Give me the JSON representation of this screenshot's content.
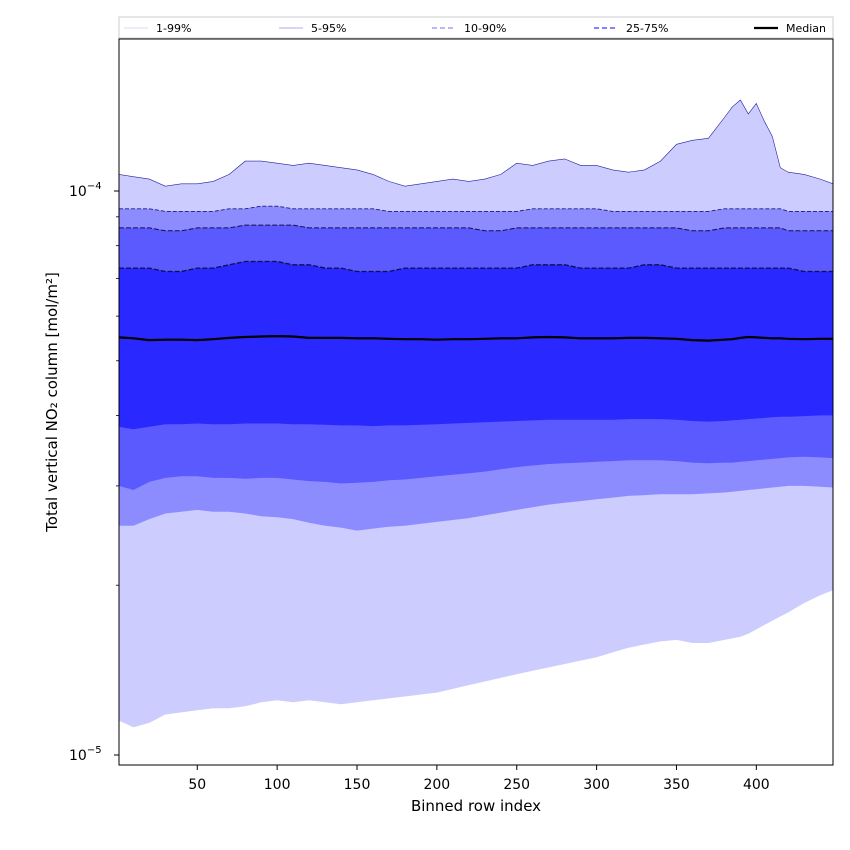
{
  "chart_data": {
    "type": "area",
    "xlabel": "Binned row index",
    "ylabel": "Total vertical NO₂ column [mol/m²]",
    "yscale": "log",
    "xlim": [
      1,
      448
    ],
    "ylim": [
      9.6e-06,
      0.000186
    ],
    "x_ticks": [
      50,
      100,
      150,
      200,
      250,
      300,
      350,
      400
    ],
    "y_ticks": [
      {
        "value": 1e-05,
        "base": "10",
        "exponent": "−5"
      },
      {
        "value": 0.0001,
        "base": "10",
        "exponent": "−4"
      }
    ],
    "grid": false,
    "legend_position": "top",
    "x": [
      1,
      10,
      20,
      30,
      40,
      50,
      60,
      70,
      80,
      90,
      100,
      110,
      120,
      130,
      140,
      150,
      160,
      170,
      180,
      190,
      200,
      210,
      220,
      230,
      240,
      250,
      260,
      270,
      280,
      290,
      300,
      310,
      320,
      330,
      340,
      350,
      360,
      370,
      380,
      385,
      390,
      395,
      400,
      405,
      410,
      415,
      420,
      430,
      440,
      448
    ],
    "series": [
      {
        "name": "1-99%",
        "color": "#ccccff",
        "upper": [
          0.000107,
          0.000106,
          0.000105,
          0.000102,
          0.000103,
          0.000103,
          0.000104,
          0.000107,
          0.000113,
          0.000113,
          0.000112,
          0.000111,
          0.000112,
          0.000111,
          0.00011,
          0.000109,
          0.000107,
          0.000104,
          0.000102,
          0.000103,
          0.000104,
          0.000105,
          0.000104,
          0.000105,
          0.000107,
          0.000112,
          0.000111,
          0.000113,
          0.000114,
          0.000111,
          0.000111,
          0.000109,
          0.000108,
          0.000109,
          0.000113,
          0.000121,
          0.000123,
          0.000124,
          0.000135,
          0.000141,
          0.000145,
          0.000137,
          0.000143,
          0.000133,
          0.000125,
          0.00011,
          0.000108,
          0.000107,
          0.000105,
          0.000103
        ],
        "lower": [
          1.15e-05,
          1.12e-05,
          1.14e-05,
          1.18e-05,
          1.19e-05,
          1.2e-05,
          1.21e-05,
          1.21e-05,
          1.22e-05,
          1.24e-05,
          1.25e-05,
          1.24e-05,
          1.25e-05,
          1.24e-05,
          1.23e-05,
          1.24e-05,
          1.25e-05,
          1.26e-05,
          1.27e-05,
          1.28e-05,
          1.29e-05,
          1.31e-05,
          1.33e-05,
          1.35e-05,
          1.37e-05,
          1.39e-05,
          1.41e-05,
          1.43e-05,
          1.45e-05,
          1.47e-05,
          1.49e-05,
          1.52e-05,
          1.55e-05,
          1.57e-05,
          1.59e-05,
          1.6e-05,
          1.58e-05,
          1.58e-05,
          1.6e-05,
          1.61e-05,
          1.62e-05,
          1.64e-05,
          1.67e-05,
          1.7e-05,
          1.73e-05,
          1.76e-05,
          1.79e-05,
          1.86e-05,
          1.92e-05,
          1.96e-05
        ]
      },
      {
        "name": "5-95%",
        "color": "#8c8cff",
        "upper": [
          9.3e-05,
          9.3e-05,
          9.3e-05,
          9.2e-05,
          9.2e-05,
          9.2e-05,
          9.2e-05,
          9.3e-05,
          9.3e-05,
          9.4e-05,
          9.4e-05,
          9.3e-05,
          9.3e-05,
          9.3e-05,
          9.3e-05,
          9.3e-05,
          9.3e-05,
          9.2e-05,
          9.2e-05,
          9.2e-05,
          9.2e-05,
          9.2e-05,
          9.2e-05,
          9.2e-05,
          9.2e-05,
          9.2e-05,
          9.3e-05,
          9.3e-05,
          9.3e-05,
          9.3e-05,
          9.3e-05,
          9.2e-05,
          9.2e-05,
          9.2e-05,
          9.2e-05,
          9.2e-05,
          9.2e-05,
          9.2e-05,
          9.3e-05,
          9.3e-05,
          9.3e-05,
          9.3e-05,
          9.3e-05,
          9.3e-05,
          9.3e-05,
          9.3e-05,
          9.2e-05,
          9.2e-05,
          9.2e-05,
          9.2e-05
        ],
        "lower": [
          2.55e-05,
          2.55e-05,
          2.62e-05,
          2.68e-05,
          2.7e-05,
          2.72e-05,
          2.7e-05,
          2.7e-05,
          2.68e-05,
          2.65e-05,
          2.64e-05,
          2.62e-05,
          2.58e-05,
          2.55e-05,
          2.53e-05,
          2.5e-05,
          2.52e-05,
          2.54e-05,
          2.55e-05,
          2.57e-05,
          2.59e-05,
          2.61e-05,
          2.63e-05,
          2.66e-05,
          2.69e-05,
          2.72e-05,
          2.75e-05,
          2.78e-05,
          2.8e-05,
          2.82e-05,
          2.84e-05,
          2.86e-05,
          2.88e-05,
          2.89e-05,
          2.9e-05,
          2.9e-05,
          2.9e-05,
          2.91e-05,
          2.92e-05,
          2.93e-05,
          2.94e-05,
          2.95e-05,
          2.96e-05,
          2.97e-05,
          2.98e-05,
          2.99e-05,
          3e-05,
          3e-05,
          2.99e-05,
          2.98e-05
        ]
      },
      {
        "name": "10-90%",
        "color": "#5a5aff",
        "upper": [
          8.6e-05,
          8.6e-05,
          8.6e-05,
          8.5e-05,
          8.5e-05,
          8.6e-05,
          8.6e-05,
          8.6e-05,
          8.7e-05,
          8.7e-05,
          8.7e-05,
          8.7e-05,
          8.6e-05,
          8.6e-05,
          8.6e-05,
          8.6e-05,
          8.6e-05,
          8.6e-05,
          8.6e-05,
          8.6e-05,
          8.6e-05,
          8.6e-05,
          8.6e-05,
          8.5e-05,
          8.5e-05,
          8.6e-05,
          8.6e-05,
          8.6e-05,
          8.6e-05,
          8.6e-05,
          8.6e-05,
          8.6e-05,
          8.6e-05,
          8.6e-05,
          8.6e-05,
          8.6e-05,
          8.5e-05,
          8.5e-05,
          8.6e-05,
          8.6e-05,
          8.6e-05,
          8.6e-05,
          8.6e-05,
          8.6e-05,
          8.6e-05,
          8.6e-05,
          8.5e-05,
          8.5e-05,
          8.5e-05,
          8.5e-05
        ],
        "lower": [
          3e-05,
          2.95e-05,
          3.05e-05,
          3.1e-05,
          3.12e-05,
          3.12e-05,
          3.1e-05,
          3.1e-05,
          3.09e-05,
          3.1e-05,
          3.1e-05,
          3.08e-05,
          3.06e-05,
          3.05e-05,
          3.03e-05,
          3.04e-05,
          3.05e-05,
          3.07e-05,
          3.08e-05,
          3.1e-05,
          3.12e-05,
          3.14e-05,
          3.16e-05,
          3.18e-05,
          3.21e-05,
          3.24e-05,
          3.26e-05,
          3.28e-05,
          3.29e-05,
          3.3e-05,
          3.31e-05,
          3.32e-05,
          3.33e-05,
          3.33e-05,
          3.33e-05,
          3.32e-05,
          3.3e-05,
          3.29e-05,
          3.3e-05,
          3.3e-05,
          3.31e-05,
          3.32e-05,
          3.33e-05,
          3.34e-05,
          3.35e-05,
          3.36e-05,
          3.37e-05,
          3.38e-05,
          3.37e-05,
          3.36e-05
        ]
      },
      {
        "name": "25-75%",
        "color": "#2828ff",
        "upper": [
          7.3e-05,
          7.3e-05,
          7.3e-05,
          7.2e-05,
          7.2e-05,
          7.3e-05,
          7.3e-05,
          7.4e-05,
          7.5e-05,
          7.5e-05,
          7.5e-05,
          7.4e-05,
          7.4e-05,
          7.3e-05,
          7.3e-05,
          7.2e-05,
          7.2e-05,
          7.2e-05,
          7.3e-05,
          7.3e-05,
          7.3e-05,
          7.3e-05,
          7.3e-05,
          7.3e-05,
          7.3e-05,
          7.3e-05,
          7.4e-05,
          7.4e-05,
          7.4e-05,
          7.3e-05,
          7.3e-05,
          7.3e-05,
          7.3e-05,
          7.4e-05,
          7.4e-05,
          7.3e-05,
          7.3e-05,
          7.3e-05,
          7.3e-05,
          7.3e-05,
          7.3e-05,
          7.3e-05,
          7.3e-05,
          7.3e-05,
          7.3e-05,
          7.3e-05,
          7.3e-05,
          7.2e-05,
          7.2e-05,
          7.2e-05
        ],
        "lower": [
          3.82e-05,
          3.78e-05,
          3.82e-05,
          3.86e-05,
          3.86e-05,
          3.87e-05,
          3.86e-05,
          3.86e-05,
          3.87e-05,
          3.87e-05,
          3.87e-05,
          3.86e-05,
          3.86e-05,
          3.85e-05,
          3.84e-05,
          3.84e-05,
          3.83e-05,
          3.84e-05,
          3.84e-05,
          3.85e-05,
          3.86e-05,
          3.87e-05,
          3.88e-05,
          3.89e-05,
          3.9e-05,
          3.91e-05,
          3.92e-05,
          3.93e-05,
          3.93e-05,
          3.93e-05,
          3.93e-05,
          3.93e-05,
          3.94e-05,
          3.94e-05,
          3.94e-05,
          3.93e-05,
          3.91e-05,
          3.9e-05,
          3.91e-05,
          3.92e-05,
          3.93e-05,
          3.94e-05,
          3.95e-05,
          3.96e-05,
          3.97e-05,
          3.98e-05,
          3.98e-05,
          3.99e-05,
          4e-05,
          4e-05
        ]
      },
      {
        "name": "Median",
        "color": "#000000",
        "values": [
          5.5e-05,
          5.48e-05,
          5.44e-05,
          5.45e-05,
          5.45e-05,
          5.44e-05,
          5.46e-05,
          5.49e-05,
          5.51e-05,
          5.52e-05,
          5.53e-05,
          5.52e-05,
          5.49e-05,
          5.49e-05,
          5.49e-05,
          5.48e-05,
          5.48e-05,
          5.47e-05,
          5.46e-05,
          5.46e-05,
          5.45e-05,
          5.46e-05,
          5.46e-05,
          5.47e-05,
          5.48e-05,
          5.48e-05,
          5.5e-05,
          5.51e-05,
          5.5e-05,
          5.48e-05,
          5.48e-05,
          5.48e-05,
          5.49e-05,
          5.49e-05,
          5.48e-05,
          5.47e-05,
          5.44e-05,
          5.43e-05,
          5.45e-05,
          5.46e-05,
          5.49e-05,
          5.51e-05,
          5.5e-05,
          5.49e-05,
          5.48e-05,
          5.48e-05,
          5.47e-05,
          5.46e-05,
          5.47e-05,
          5.47e-05
        ]
      }
    ],
    "legend": [
      {
        "label": "1-99%",
        "color": "#ccccff",
        "dash": "solid",
        "width": 0.7
      },
      {
        "label": "5-95%",
        "color": "#8c8cff",
        "dash": "solid",
        "width": 0.7
      },
      {
        "label": "10-90%",
        "color": "#8c8cff",
        "dash": "5,3",
        "width": 1.2
      },
      {
        "label": "25-75%",
        "color": "#5a5aff",
        "dash": "5,3",
        "width": 1.5
      },
      {
        "label": "Median",
        "color": "#000000",
        "dash": "solid",
        "width": 2.2
      }
    ]
  }
}
